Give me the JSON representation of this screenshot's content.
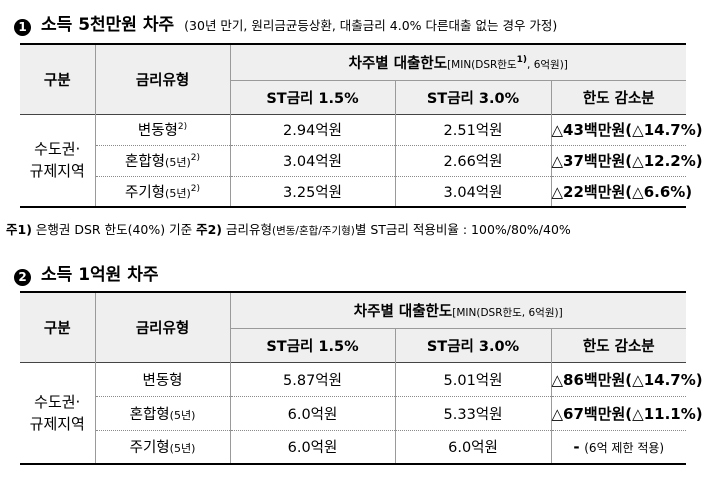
{
  "section1": {
    "number": "1",
    "title": "소득 5천만원 차주",
    "condition": "(30년 만기, 원리금균등상환, 대출금리 4.0% 다른대출 없는 경우 가정)",
    "headers": {
      "category": "구분",
      "rate_type": "금리유형",
      "limit_main": "차주별 대출한도",
      "limit_note_pre": "[MIN(DSR한도",
      "limit_note_sup": "1)",
      "limit_note_post": ", 6억원)]",
      "st15": "ST금리 1.5%",
      "st30": "ST금리 3.0%",
      "reduction": "한도 감소분"
    },
    "region_line1": "수도권·",
    "region_line2": "규제지역",
    "rows": [
      {
        "type": "변동형",
        "type_sub": "",
        "sup": "2)",
        "st15": "2.94억원",
        "st30": "2.51억원",
        "reduction": "△43백만원(△14.7%)"
      },
      {
        "type": "혼합형",
        "type_sub": "(5년)",
        "sup": "2)",
        "st15": "3.04억원",
        "st30": "2.66억원",
        "reduction": "△37백만원(△12.2%)"
      },
      {
        "type": "주기형",
        "type_sub": "(5년)",
        "sup": "2)",
        "st15": "3.25억원",
        "st30": "3.04억원",
        "reduction": "△22백만원(△6.6%)"
      }
    ]
  },
  "footnote": {
    "label1": "주1)",
    "text1": " 은행권 DSR 한도(40%) 기준 ",
    "label2": "주2)",
    "text2a": " 금리유형",
    "text2b": "(변동/혼합/주기형)",
    "text2c": "별 ST금리 적용비율 : 100%/80%/40%"
  },
  "section2": {
    "number": "2",
    "title": "소득 1억원 차주",
    "headers": {
      "category": "구분",
      "rate_type": "금리유형",
      "limit_main": "차주별 대출한도",
      "limit_note": "[MIN(DSR한도, 6억원)]",
      "st15": "ST금리 1.5%",
      "st30": "ST금리 3.0%",
      "reduction": "한도 감소분"
    },
    "region_line1": "수도권·",
    "region_line2": "규제지역",
    "rows": [
      {
        "type": "변동형",
        "type_sub": "",
        "st15": "5.87억원",
        "st30": "5.01억원",
        "reduction": "△86백만원(△14.7%)",
        "reduction_note": ""
      },
      {
        "type": "혼합형",
        "type_sub": "(5년)",
        "st15": "6.0억원",
        "st30": "5.33억원",
        "reduction": "△67백만원(△11.1%)",
        "reduction_note": ""
      },
      {
        "type": "주기형",
        "type_sub": "(5년)",
        "st15": "6.0억원",
        "st30": "6.0억원",
        "reduction": "-",
        "reduction_note": "(6억 제한 적용)"
      }
    ]
  }
}
